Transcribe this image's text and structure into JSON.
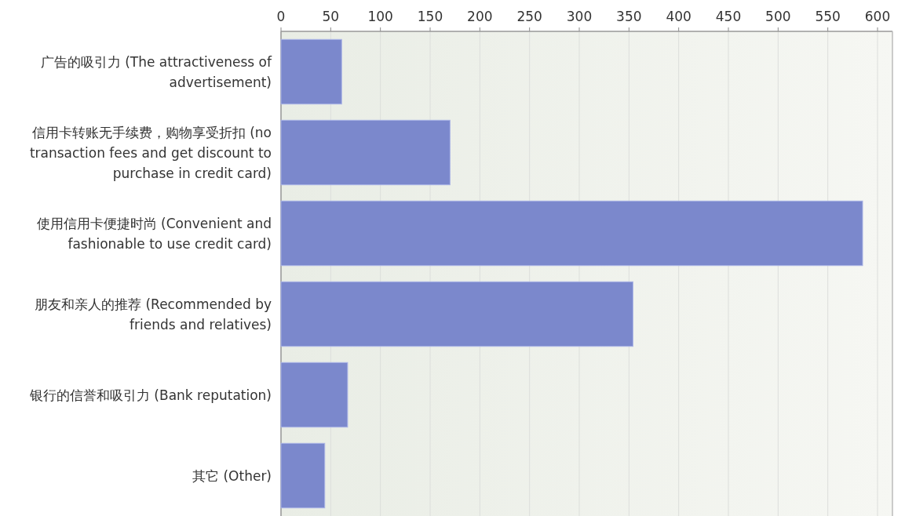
{
  "chart_data": {
    "type": "bar",
    "orientation": "horizontal",
    "categories": [
      "广告的吸引力 (The attractiveness of advertisement)",
      "信用卡转账无手续费，购物享受折扣 (no transaction fees and get discount to purchase in credit card)",
      "使用信用卡便捷时尚 (Convenient and fashionable to use credit card)",
      "朋友和亲人的推荐 (Recommended by friends and relatives)",
      "银行的信誉和吸引力 (Bank reputation)",
      "其它 (Other)"
    ],
    "values": [
      61,
      170,
      585,
      354,
      67,
      44
    ],
    "color": "#7b88cc",
    "xlim": [
      0,
      615
    ],
    "xticks": [
      0,
      50,
      100,
      150,
      200,
      250,
      300,
      350,
      400,
      450,
      500,
      550,
      600
    ],
    "grid": "x"
  }
}
